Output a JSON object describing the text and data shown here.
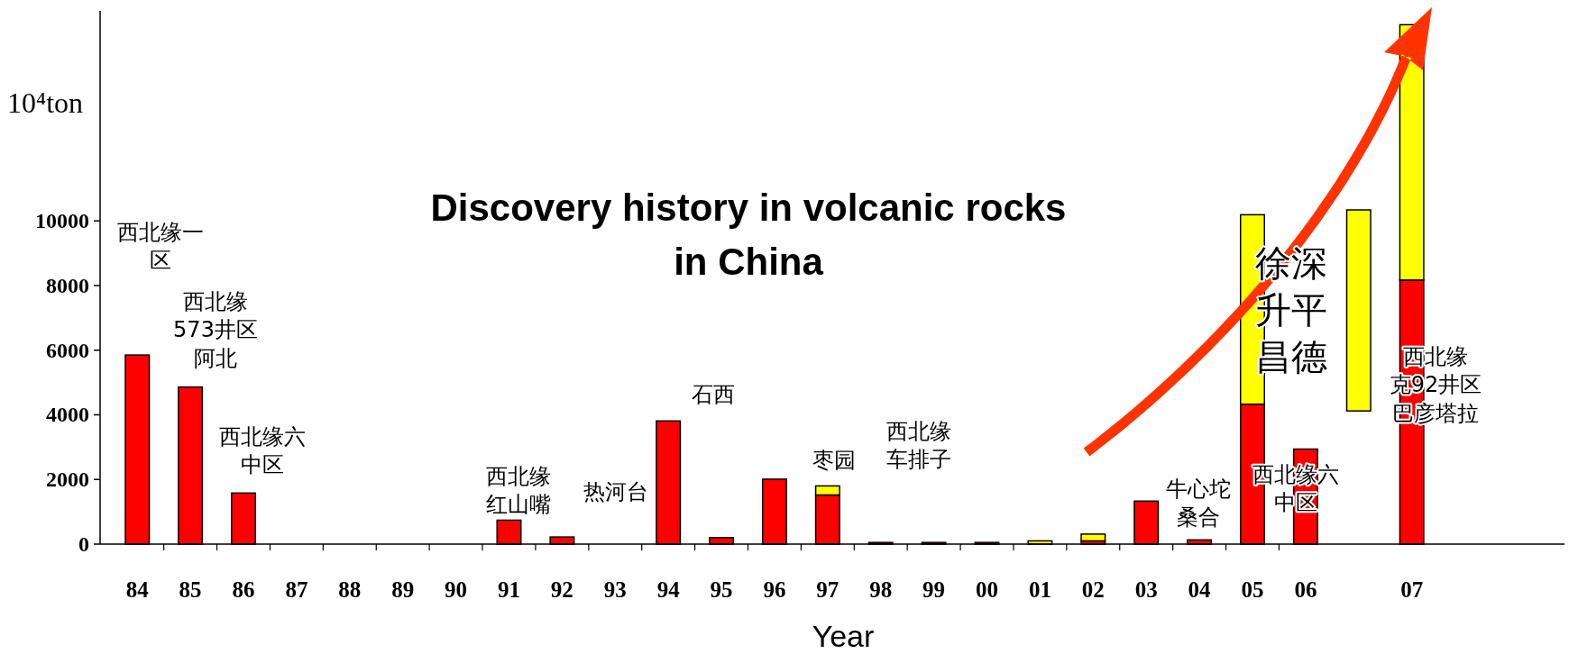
{
  "chart_data": {
    "type": "bar",
    "title": "Discovery history in volcanic rocks\nin China",
    "xlabel": "Year",
    "ylabel": "10⁴ton",
    "categories": [
      "84",
      "85",
      "86",
      "87",
      "88",
      "89",
      "90",
      "91",
      "92",
      "93",
      "94",
      "95",
      "96",
      "97",
      "98",
      "99",
      "00",
      "01",
      "02",
      "03",
      "04",
      "05",
      "06",
      null,
      "07"
    ],
    "stacked": true,
    "series": [
      {
        "color": "#ff0000",
        "values": [
          5850,
          4860,
          1580,
          0,
          0,
          0,
          0,
          740,
          220,
          0,
          3810,
          200,
          2010,
          1520,
          50,
          50,
          50,
          0,
          100,
          1330,
          130,
          4330,
          2940,
          null,
          8170
        ]
      },
      {
        "color": "#ffff00",
        "values": [
          0,
          0,
          0,
          0,
          0,
          0,
          0,
          0,
          0,
          0,
          0,
          0,
          0,
          280,
          0,
          0,
          0,
          100,
          210,
          0,
          0,
          5860,
          0,
          6220,
          7900
        ],
        "base": [
          null,
          null,
          null,
          null,
          null,
          null,
          null,
          null,
          null,
          null,
          null,
          null,
          null,
          null,
          null,
          null,
          null,
          null,
          null,
          null,
          null,
          null,
          null,
          4120,
          null
        ]
      }
    ],
    "ylim": [
      0,
      16500
    ],
    "yticks": [
      0,
      2000,
      4000,
      6000,
      8000,
      10000
    ],
    "annotations": [
      "西北缘一区",
      "西北缘573井区阿北",
      "西北缘六中区",
      "西北缘红山嘴",
      "热河台",
      "石西",
      "枣园",
      "西北缘车排子",
      "牛心坨桑合",
      "徐深升平昌德",
      "西北缘六中区",
      "西北缘克92井区巴彦塔拉"
    ]
  }
}
